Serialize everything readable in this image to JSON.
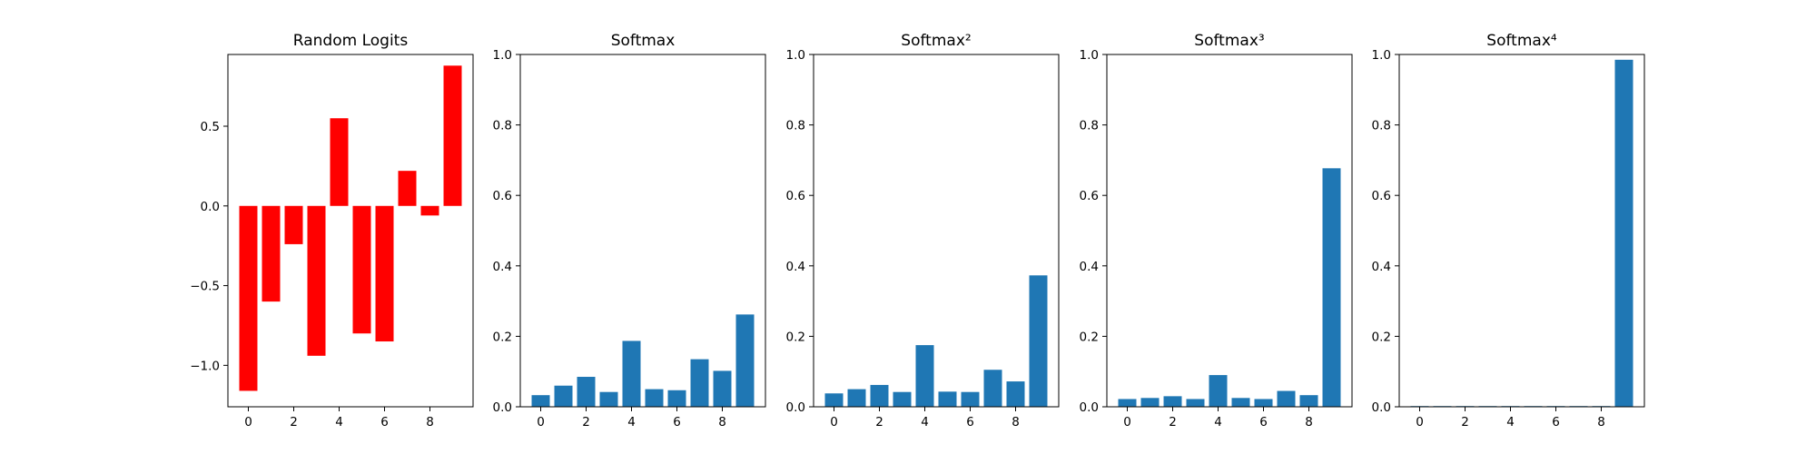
{
  "colors": {
    "logits": "#ff0000",
    "softmax": "#1f77b4"
  },
  "chart_data": [
    {
      "type": "bar",
      "title": "Random Logits",
      "x": [
        0,
        1,
        2,
        3,
        4,
        5,
        6,
        7,
        8,
        9
      ],
      "values": [
        -1.16,
        -0.6,
        -0.24,
        -0.94,
        0.55,
        -0.8,
        -0.85,
        0.22,
        -0.06,
        0.88
      ],
      "xlim": [
        -0.9,
        9.9
      ],
      "ylim": [
        -1.26,
        0.95
      ],
      "xticks": [
        0,
        2,
        4,
        6,
        8
      ],
      "yticks": [
        -1.0,
        -0.5,
        0.0,
        0.5
      ],
      "ytick_labels": [
        "−1.0",
        "−0.5",
        "0.0",
        "0.5"
      ],
      "color": "#ff0000"
    },
    {
      "type": "bar",
      "title": "Softmax",
      "x": [
        0,
        1,
        2,
        3,
        4,
        5,
        6,
        7,
        8,
        9
      ],
      "values": [
        0.033,
        0.06,
        0.085,
        0.042,
        0.187,
        0.05,
        0.047,
        0.135,
        0.102,
        0.262
      ],
      "xlim": [
        -0.9,
        9.9
      ],
      "ylim": [
        0,
        1.0
      ],
      "xticks": [
        0,
        2,
        4,
        6,
        8
      ],
      "yticks": [
        0.0,
        0.2,
        0.4,
        0.6,
        0.8,
        1.0
      ],
      "ytick_labels": [
        "0.0",
        "0.2",
        "0.4",
        "0.6",
        "0.8",
        "1.0"
      ],
      "color": "#1f77b4"
    },
    {
      "type": "bar",
      "title": "Softmax²",
      "x": [
        0,
        1,
        2,
        3,
        4,
        5,
        6,
        7,
        8,
        9
      ],
      "values": [
        0.038,
        0.05,
        0.062,
        0.042,
        0.175,
        0.043,
        0.042,
        0.105,
        0.072,
        0.373
      ],
      "xlim": [
        -0.9,
        9.9
      ],
      "ylim": [
        0,
        1.0
      ],
      "xticks": [
        0,
        2,
        4,
        6,
        8
      ],
      "yticks": [
        0.0,
        0.2,
        0.4,
        0.6,
        0.8,
        1.0
      ],
      "ytick_labels": [
        "0.0",
        "0.2",
        "0.4",
        "0.6",
        "0.8",
        "1.0"
      ],
      "color": "#1f77b4"
    },
    {
      "type": "bar",
      "title": "Softmax³",
      "x": [
        0,
        1,
        2,
        3,
        4,
        5,
        6,
        7,
        8,
        9
      ],
      "values": [
        0.022,
        0.025,
        0.03,
        0.022,
        0.09,
        0.025,
        0.022,
        0.045,
        0.033,
        0.677
      ],
      "xlim": [
        -0.9,
        9.9
      ],
      "ylim": [
        0,
        1.0
      ],
      "xticks": [
        0,
        2,
        4,
        6,
        8
      ],
      "yticks": [
        0.0,
        0.2,
        0.4,
        0.6,
        0.8,
        1.0
      ],
      "ytick_labels": [
        "0.0",
        "0.2",
        "0.4",
        "0.6",
        "0.8",
        "1.0"
      ],
      "color": "#1f77b4"
    },
    {
      "type": "bar",
      "title": "Softmax⁴",
      "x": [
        0,
        1,
        2,
        3,
        4,
        5,
        6,
        7,
        8,
        9
      ],
      "values": [
        0.002,
        0.002,
        0.002,
        0.002,
        0.002,
        0.002,
        0.002,
        0.002,
        0.002,
        0.985
      ],
      "xlim": [
        -0.9,
        9.9
      ],
      "ylim": [
        0,
        1.0
      ],
      "xticks": [
        0,
        2,
        4,
        6,
        8
      ],
      "yticks": [
        0.0,
        0.2,
        0.4,
        0.6,
        0.8,
        1.0
      ],
      "ytick_labels": [
        "0.0",
        "0.2",
        "0.4",
        "0.6",
        "0.8",
        "1.0"
      ],
      "color": "#1f77b4"
    }
  ]
}
